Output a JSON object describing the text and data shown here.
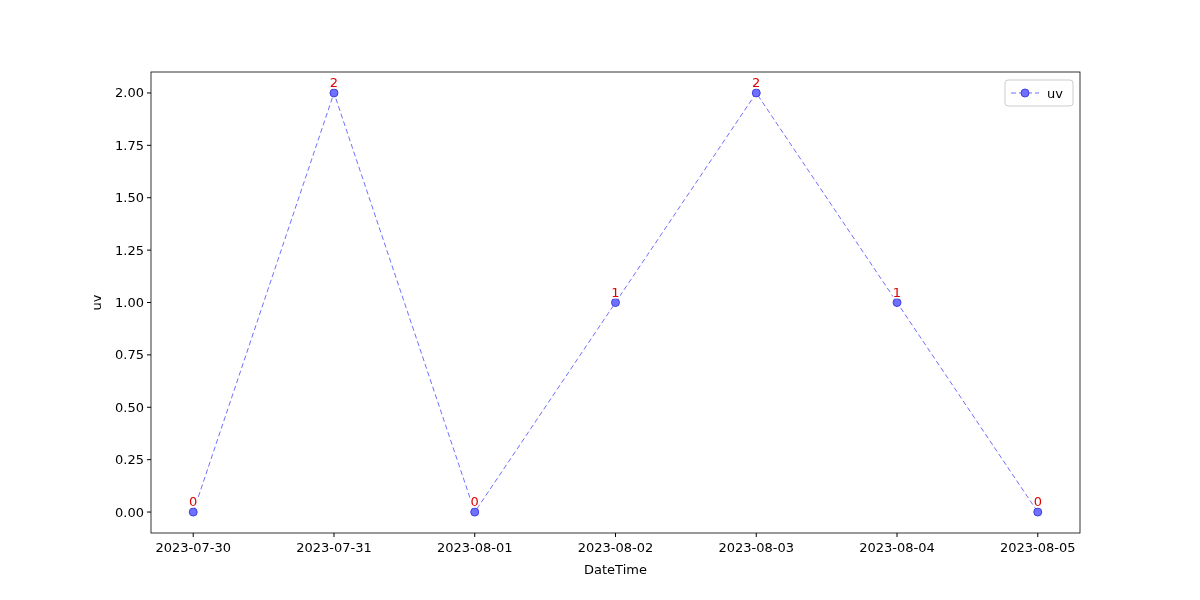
{
  "chart_data": {
    "type": "line",
    "xlabel": "DateTime",
    "ylabel": "uv",
    "x": [
      "2023-07-30",
      "2023-07-31",
      "2023-08-01",
      "2023-08-02",
      "2023-08-03",
      "2023-08-04",
      "2023-08-05"
    ],
    "series": [
      {
        "name": "uv",
        "color": "#7070ff",
        "values": [
          0,
          2,
          0,
          1,
          2,
          1,
          0
        ]
      }
    ],
    "xlim": [
      "2023-07-29T16:48",
      "2023-08-05T07:12"
    ],
    "xticks": [
      "2023-07-30",
      "2023-07-31",
      "2023-08-01",
      "2023-08-02",
      "2023-08-03",
      "2023-08-04",
      "2023-08-05"
    ],
    "ylim": [
      -0.1,
      2.1
    ],
    "yticks": [
      {
        "value": 0,
        "label": "0.00"
      },
      {
        "value": 0.25,
        "label": "0.25"
      },
      {
        "value": 0.5,
        "label": "0.50"
      },
      {
        "value": 0.75,
        "label": "0.75"
      },
      {
        "value": 1,
        "label": "1.00"
      },
      {
        "value": 1.25,
        "label": "1.25"
      },
      {
        "value": 1.5,
        "label": "1.50"
      },
      {
        "value": 1.75,
        "label": "1.75"
      },
      {
        "value": 2,
        "label": "2.00"
      }
    ],
    "legend": "top right",
    "marker": "circle",
    "line_style": "dashed",
    "data_labels": true,
    "grid": false
  }
}
